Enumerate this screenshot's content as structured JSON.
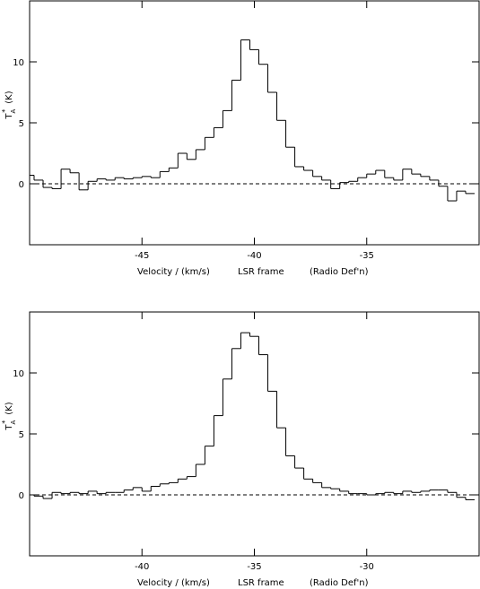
{
  "chart_data": [
    {
      "type": "step",
      "color": "#000000",
      "zero_line": true,
      "xlabel": [
        "Velocity / (km/s)",
        "LSR frame",
        "(Radio Def'n)"
      ],
      "ylabel": {
        "symbol": "T",
        "subscript": "A",
        "superscript": "*",
        "unit": "(K)"
      },
      "xlim": [
        -50,
        -30
      ],
      "xticks": [
        -45,
        -40,
        -35
      ],
      "ylim": [
        -5,
        15
      ],
      "yticks": [
        0,
        5,
        10
      ],
      "x": [
        -50,
        -49.6,
        -49.2,
        -48.8,
        -48.4,
        -48,
        -47.6,
        -47.2,
        -46.8,
        -46.4,
        -46,
        -45.6,
        -45.2,
        -44.8,
        -44.4,
        -44,
        -43.6,
        -43.2,
        -42.8,
        -42.4,
        -42,
        -41.6,
        -41.2,
        -40.8,
        -40.4,
        -40,
        -39.6,
        -39.2,
        -38.8,
        -38.4,
        -38,
        -37.6,
        -37.2,
        -36.8,
        -36.4,
        -36,
        -35.6,
        -35.2,
        -34.8,
        -34.4,
        -34,
        -33.6,
        -33.2,
        -32.8,
        -32.4,
        -32,
        -31.6,
        -31.2,
        -30.8,
        -30.4
      ],
      "values": [
        0.7,
        0.3,
        -0.3,
        -0.4,
        1.2,
        0.9,
        -0.5,
        0.2,
        0.4,
        0.3,
        0.5,
        0.4,
        0.5,
        0.6,
        0.5,
        1.0,
        1.3,
        2.5,
        2.0,
        2.8,
        3.8,
        4.6,
        6.0,
        8.5,
        11.8,
        11.0,
        9.8,
        7.5,
        5.2,
        3.0,
        1.4,
        1.1,
        0.6,
        0.3,
        -0.4,
        0.1,
        0.2,
        0.5,
        0.8,
        1.1,
        0.5,
        0.3,
        1.2,
        0.8,
        0.6,
        0.3,
        -0.2,
        -1.4,
        -0.6,
        -0.8
      ]
    },
    {
      "type": "step",
      "color": "#000000",
      "zero_line": true,
      "xlabel": [
        "Velocity / (km/s)",
        "LSR frame",
        "(Radio Def'n)"
      ],
      "ylabel": {
        "symbol": "T",
        "subscript": "A",
        "superscript": "*",
        "unit": "(K)"
      },
      "xlim": [
        -45,
        -25
      ],
      "xticks": [
        -40,
        -35,
        -30
      ],
      "ylim": [
        -5,
        15
      ],
      "yticks": [
        0,
        5,
        10
      ],
      "x": [
        -45,
        -44.6,
        -44.2,
        -43.8,
        -43.4,
        -43,
        -42.6,
        -42.2,
        -41.8,
        -41.4,
        -41,
        -40.6,
        -40.2,
        -39.8,
        -39.4,
        -39,
        -38.6,
        -38.2,
        -37.8,
        -37.4,
        -37,
        -36.6,
        -36.2,
        -35.8,
        -35.4,
        -35,
        -34.6,
        -34.2,
        -33.8,
        -33.4,
        -33,
        -32.6,
        -32.2,
        -31.8,
        -31.4,
        -31,
        -30.6,
        -30.2,
        -29.8,
        -29.4,
        -29,
        -28.6,
        -28.2,
        -27.8,
        -27.4,
        -27,
        -26.6,
        -26.2,
        -25.8,
        -25.4
      ],
      "values": [
        0.0,
        -0.1,
        -0.3,
        0.2,
        0.1,
        0.2,
        0.1,
        0.3,
        0.1,
        0.2,
        0.2,
        0.4,
        0.6,
        0.3,
        0.7,
        0.9,
        1.0,
        1.3,
        1.5,
        2.5,
        4.0,
        6.5,
        9.5,
        12.0,
        13.3,
        13.0,
        11.5,
        8.5,
        5.5,
        3.2,
        2.2,
        1.3,
        1.0,
        0.6,
        0.5,
        0.3,
        0.1,
        0.1,
        0.0,
        0.1,
        0.2,
        0.1,
        0.3,
        0.2,
        0.3,
        0.4,
        0.4,
        0.2,
        -0.2,
        -0.4
      ]
    }
  ]
}
